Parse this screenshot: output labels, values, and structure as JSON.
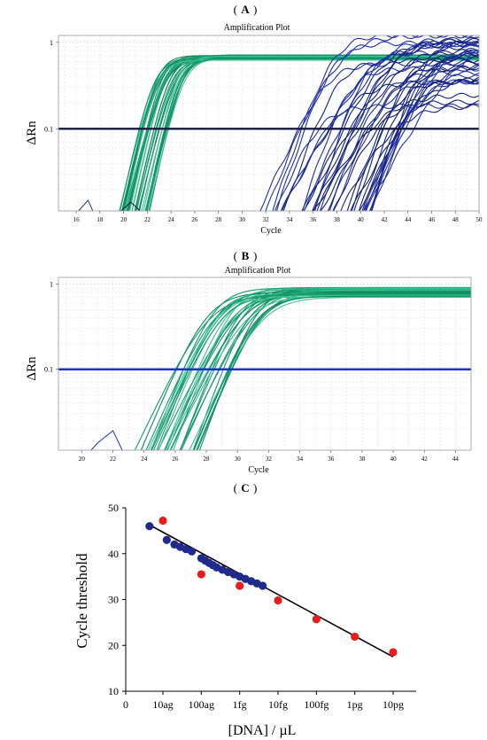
{
  "chart_data": [
    {
      "type": "line",
      "panel_label": "A",
      "title": "Amplification Plot",
      "xlabel": "Cycle",
      "ylabel": "ΔRn",
      "xlim": [
        14.5,
        50
      ],
      "ylim_log10": [
        -1.95,
        0.08
      ],
      "y_scale": "log",
      "x_ticks": [
        "16",
        "18",
        "20",
        "22",
        "24",
        "26",
        "28",
        "30",
        "32",
        "34",
        "36",
        "38",
        "40",
        "42",
        "44",
        "46",
        "48",
        "50"
      ],
      "y_ticks": [
        "1",
        "0.1"
      ],
      "threshold": 0.1,
      "grid": true,
      "colors": {
        "early_group": "#1aa075",
        "late_group": "#1f2ea8",
        "threshold": "#141a40"
      },
      "series_groups": [
        {
          "name": "",
          "color": "#1aa075",
          "count": 34,
          "ct_range": [
            21.3,
            23.8
          ],
          "plateau_range": [
            0.62,
            0.72
          ]
        },
        {
          "name": "",
          "color": "#1f2ea8",
          "count": 40,
          "ct_range": [
            34.5,
            44.5
          ],
          "plateau_range": [
            0.18,
            1.25
          ]
        }
      ]
    },
    {
      "type": "line",
      "panel_label": "B",
      "title": "Amplification Plot",
      "xlabel": "Cycle",
      "ylabel": "ΔRn",
      "xlim": [
        18.5,
        45
      ],
      "ylim_log10": [
        -1.95,
        0.08
      ],
      "y_scale": "log",
      "x_ticks": [
        "20",
        "22",
        "24",
        "26",
        "28",
        "30",
        "32",
        "34",
        "36",
        "38",
        "40",
        "42",
        "44"
      ],
      "y_ticks": [
        "1",
        "0.1"
      ],
      "threshold": 0.1,
      "grid": true,
      "colors": {
        "curves": "#1aa075",
        "threshold": "#1a2fd6"
      },
      "series_groups": [
        {
          "name": "",
          "color": "#1aa075",
          "count": 30,
          "ct_range": [
            26.0,
            29.8
          ],
          "plateau_range": [
            0.7,
            0.92
          ]
        }
      ]
    },
    {
      "type": "scatter",
      "panel_label": "C",
      "title": "",
      "xlabel": "[DNA] / µL",
      "ylabel": "Cycle threshold",
      "ylim": [
        10,
        50
      ],
      "y_ticks": [
        10,
        20,
        30,
        40,
        50
      ],
      "x_ticks": [
        "0",
        "10ag",
        "100ag",
        "1fg",
        "10fg",
        "100fg",
        "1pg",
        "10pg"
      ],
      "x_tick_log10_g": [
        null,
        -17,
        -16,
        -15,
        -14,
        -13,
        -12,
        -11
      ],
      "colors": {
        "blue": "#1f2a8a",
        "red": "#e81c1c",
        "fit": "#000000"
      },
      "fit_line": {
        "x_log10_g": [
          -17.4,
          -11
        ],
        "y": [
          46.5,
          17.5
        ]
      },
      "series": [
        {
          "name": "",
          "color": "#1f2a8a",
          "points": [
            [
              -17.35,
              46.0
            ],
            [
              -16.9,
              43.0
            ],
            [
              -16.7,
              42.0
            ],
            [
              -16.55,
              41.5
            ],
            [
              -16.4,
              41.0
            ],
            [
              -16.25,
              40.5
            ],
            [
              -16.0,
              39.0
            ],
            [
              -15.9,
              38.5
            ],
            [
              -15.8,
              38.0
            ],
            [
              -15.7,
              37.5
            ],
            [
              -15.6,
              37.0
            ],
            [
              -15.45,
              36.5
            ],
            [
              -15.3,
              36.0
            ],
            [
              -15.15,
              35.5
            ],
            [
              -15.0,
              35.0
            ],
            [
              -14.85,
              34.5
            ],
            [
              -14.7,
              34.0
            ],
            [
              -14.55,
              33.5
            ],
            [
              -14.4,
              33.0
            ]
          ]
        },
        {
          "name": "",
          "color": "#e81c1c",
          "points": [
            [
              -17.0,
              47.2
            ],
            [
              -16.0,
              35.5
            ],
            [
              -15.0,
              33.0
            ],
            [
              -14.0,
              29.8
            ],
            [
              -13.0,
              25.7
            ],
            [
              -12.0,
              21.9
            ],
            [
              -11.0,
              18.5
            ]
          ]
        }
      ]
    }
  ]
}
